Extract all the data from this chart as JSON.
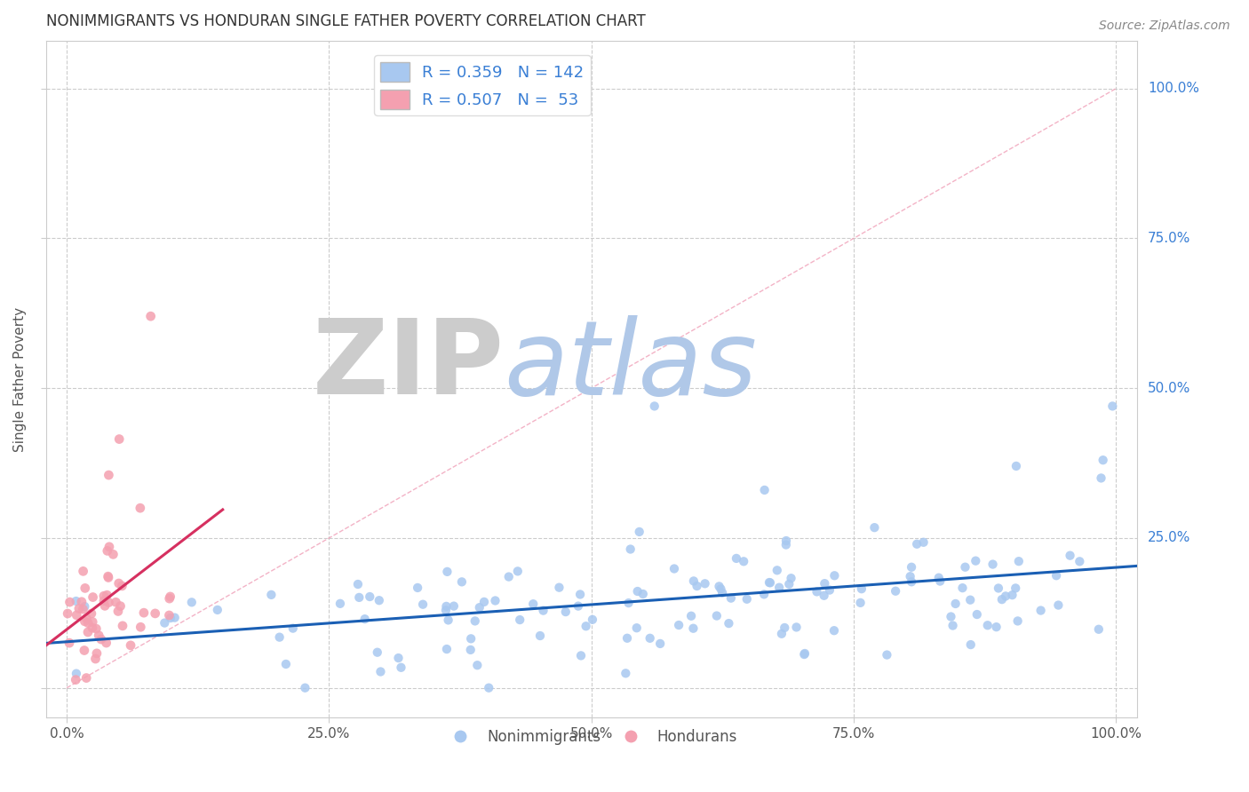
{
  "title": "NONIMMIGRANTS VS HONDURAN SINGLE FATHER POVERTY CORRELATION CHART",
  "source": "Source: ZipAtlas.com",
  "ylabel": "Single Father Poverty",
  "xlim": [
    -0.02,
    1.02
  ],
  "ylim": [
    -0.05,
    1.08
  ],
  "xticks": [
    0,
    0.25,
    0.5,
    0.75,
    1.0
  ],
  "yticks": [
    0,
    0.25,
    0.5,
    0.75,
    1.0
  ],
  "xticklabels": [
    "0.0%",
    "25.0%",
    "50.0%",
    "75.0%",
    "100.0%"
  ],
  "yticklabels": [
    "",
    "25.0%",
    "50.0%",
    "75.0%",
    "100.0%"
  ],
  "blue_color": "#a8c8f0",
  "pink_color": "#f4a0b0",
  "blue_line_color": "#1a5fb4",
  "pink_line_color": "#d63060",
  "diag_line_color": "#f0a0b8",
  "R_blue": 0.359,
  "N_blue": 142,
  "R_pink": 0.507,
  "N_pink": 53,
  "watermark_ZIP": "ZIP",
  "watermark_atlas": "atlas",
  "watermark_ZIP_color": "#cccccc",
  "watermark_atlas_color": "#b0c8e8",
  "title_fontsize": 12,
  "axis_label_fontsize": 11,
  "tick_fontsize": 11,
  "legend_fontsize": 13,
  "source_fontsize": 10,
  "ytick_color": "#3a7fd5",
  "grid_color": "#cccccc",
  "seed_blue": 42,
  "seed_pink": 77
}
